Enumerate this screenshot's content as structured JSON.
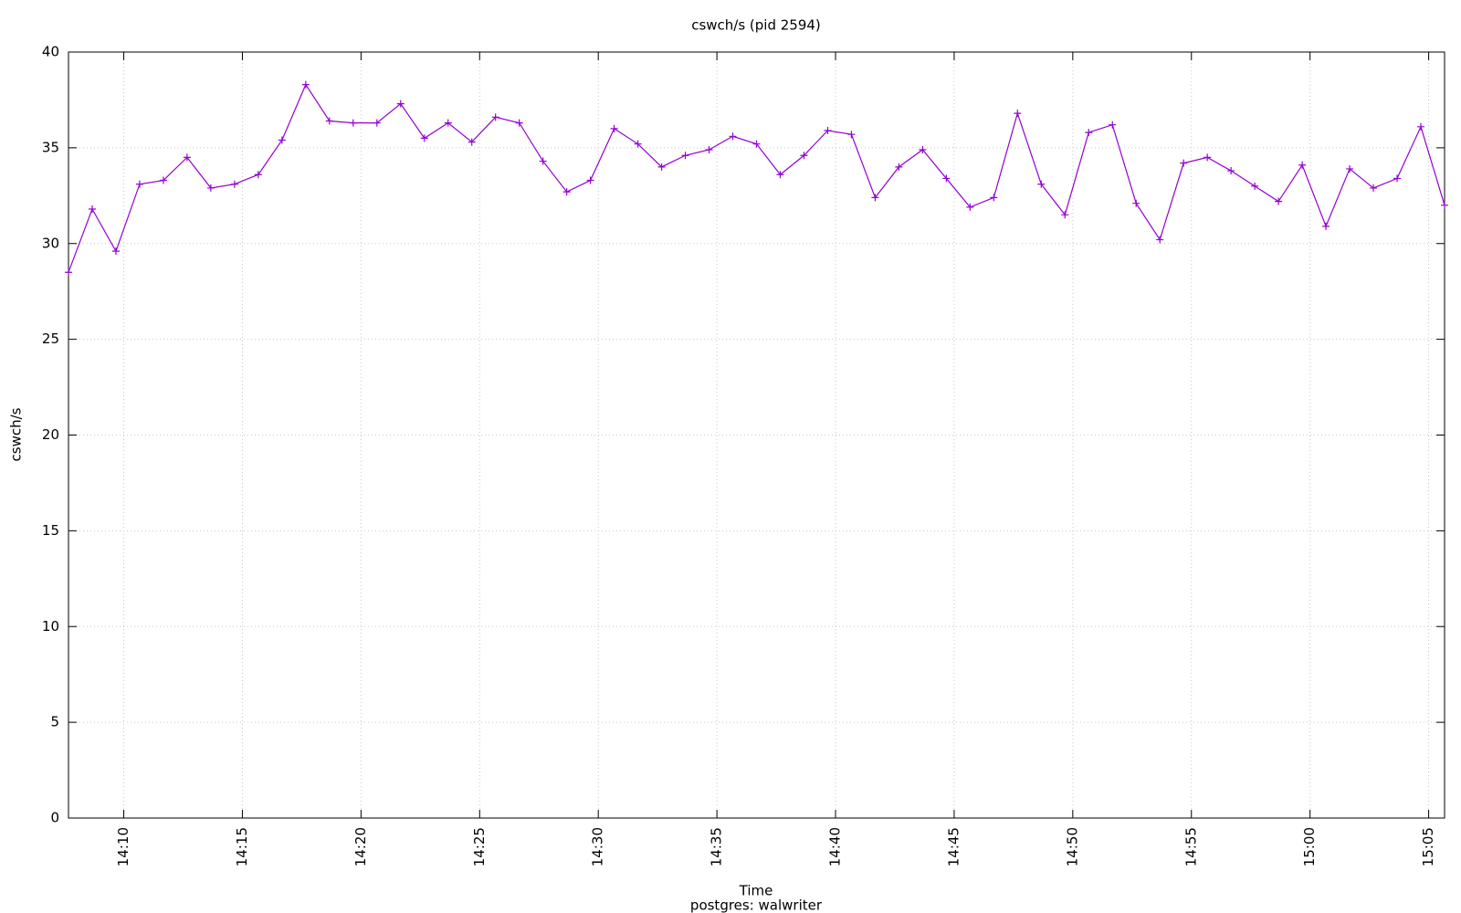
{
  "chart_data": {
    "type": "line",
    "title": "cswch/s (pid 2594)",
    "xlabel": "Time",
    "subtitle": "postgres: walwriter",
    "ylabel": "cswch/s",
    "x": [
      847.67,
      848.67,
      849.67,
      850.67,
      851.67,
      852.67,
      853.67,
      854.67,
      855.67,
      856.67,
      857.67,
      858.67,
      859.67,
      860.67,
      861.67,
      862.67,
      863.67,
      864.67,
      865.67,
      866.67,
      867.67,
      868.67,
      869.67,
      870.67,
      871.67,
      872.67,
      873.67,
      874.67,
      875.67,
      876.67,
      877.67,
      878.67,
      879.67,
      880.67,
      881.67,
      882.67,
      883.67,
      884.67,
      885.67,
      886.67,
      887.67,
      888.67,
      889.67,
      890.67,
      891.67,
      892.67,
      893.67,
      894.67,
      895.67,
      896.67,
      897.67,
      898.67,
      899.67,
      900.67,
      901.67,
      902.67,
      903.67,
      904.67,
      905.67
    ],
    "series": [
      {
        "name": "cswch/s",
        "color": "#9400d3",
        "values": [
          28.5,
          31.8,
          29.6,
          33.1,
          33.3,
          34.5,
          32.9,
          33.1,
          33.6,
          35.4,
          38.3,
          36.4,
          36.3,
          36.3,
          37.3,
          35.5,
          36.3,
          35.3,
          36.6,
          36.3,
          34.3,
          32.7,
          33.3,
          36.0,
          35.2,
          34.0,
          34.6,
          34.9,
          35.6,
          35.2,
          33.6,
          34.6,
          35.9,
          35.7,
          32.4,
          34.0,
          34.9,
          33.4,
          31.9,
          32.4,
          36.8,
          33.1,
          31.5,
          35.8,
          36.2,
          32.1,
          30.2,
          34.2,
          34.5,
          33.8,
          33.0,
          32.2,
          34.1,
          30.9,
          33.9,
          32.9,
          33.4,
          36.1,
          32.0
        ]
      }
    ],
    "xlim": [
      847.67,
      905.67
    ],
    "xticks": [
      {
        "value": 850,
        "label": "14:10"
      },
      {
        "value": 855,
        "label": "14:15"
      },
      {
        "value": 860,
        "label": "14:20"
      },
      {
        "value": 865,
        "label": "14:25"
      },
      {
        "value": 870,
        "label": "14:30"
      },
      {
        "value": 875,
        "label": "14:35"
      },
      {
        "value": 880,
        "label": "14:40"
      },
      {
        "value": 885,
        "label": "14:45"
      },
      {
        "value": 890,
        "label": "14:50"
      },
      {
        "value": 895,
        "label": "14:55"
      },
      {
        "value": 900,
        "label": "15:00"
      },
      {
        "value": 905,
        "label": "15:05"
      }
    ],
    "ylim": [
      0,
      40
    ],
    "yticks": [
      0,
      5,
      10,
      15,
      20,
      25,
      30,
      35,
      40
    ],
    "grid": true
  }
}
